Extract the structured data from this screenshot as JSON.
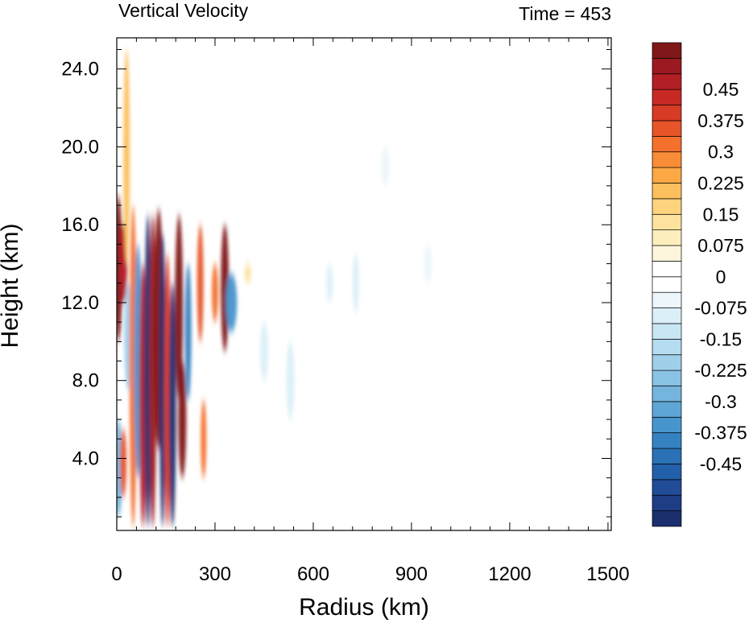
{
  "chart_data": {
    "type": "heatmap",
    "title": "Vertical Velocity",
    "time_label": "Time = 453",
    "xlabel": "Radius (km)",
    "ylabel": "Height (km)",
    "xlim": [
      0,
      1510
    ],
    "ylim": [
      0.3,
      25.6
    ],
    "x_ticks": [
      0,
      300,
      600,
      900,
      1200,
      1500
    ],
    "x_tick_labels": [
      "0",
      "300",
      "600",
      "900",
      "1200",
      "1500"
    ],
    "y_ticks": [
      4.0,
      8.0,
      12.0,
      16.0,
      20.0,
      24.0
    ],
    "y_tick_labels": [
      "4.0",
      "8.0",
      "12.0",
      "16.0",
      "20.0",
      "24.0"
    ],
    "colorbar": {
      "levels": [
        -0.5625,
        -0.525,
        -0.4875,
        -0.45,
        -0.4125,
        -0.375,
        -0.3375,
        -0.3,
        -0.2625,
        -0.225,
        -0.1875,
        -0.15,
        -0.1125,
        -0.075,
        -0.0375,
        0,
        0.0375,
        0.075,
        0.1125,
        0.15,
        0.1875,
        0.225,
        0.2625,
        0.3,
        0.3375,
        0.375,
        0.4125,
        0.45,
        0.4875,
        0.525,
        0.5625
      ],
      "colors": [
        "#1b2f6e",
        "#1f3d84",
        "#204c98",
        "#2360aa",
        "#2a71b6",
        "#3582c1",
        "#4795cd",
        "#5ea6d6",
        "#74b4dd",
        "#8ac2e4",
        "#a0cfea",
        "#b5dcf0",
        "#c9e6f4",
        "#dbeff8",
        "#ecf6fb",
        "#ffffff",
        "#ffffff",
        "#fef6dc",
        "#fdeebd",
        "#fde39d",
        "#fdd37d",
        "#fcbf5d",
        "#fba845",
        "#f98c36",
        "#f3702d",
        "#e65428",
        "#d73a25",
        "#c72a25",
        "#b31f26",
        "#9b1a22",
        "#801719"
      ],
      "tick_values": [
        -0.45,
        -0.375,
        -0.3,
        -0.225,
        -0.15,
        -0.075,
        0,
        0.075,
        0.15,
        0.225,
        0.3,
        0.375,
        0.45
      ],
      "tick_labels": [
        "-0.45",
        "-0.375",
        "-0.3",
        "-0.225",
        "-0.15",
        "-0.075",
        "0",
        "0.075",
        "0.15",
        "0.225",
        "0.3",
        "0.375",
        "0.45"
      ]
    },
    "features": [
      {
        "r": 5,
        "z0": 10.0,
        "z1": 17.5,
        "w": 0.55,
        "width": 10
      },
      {
        "r": 5,
        "z0": 1.0,
        "z1": 6.0,
        "w": -0.3,
        "width": 10
      },
      {
        "r": 20,
        "z0": 12.0,
        "z1": 16.0,
        "w": 0.45,
        "width": 10
      },
      {
        "r": 20,
        "z0": 2.0,
        "z1": 5.5,
        "w": 0.35,
        "width": 8
      },
      {
        "r": 30,
        "z0": 14.0,
        "z1": 25.0,
        "w": 0.2,
        "width": 8
      },
      {
        "r": 35,
        "z0": 7.5,
        "z1": 13.0,
        "w": -0.22,
        "width": 10
      },
      {
        "r": 50,
        "z0": 0.5,
        "z1": 17.0,
        "w": 0.3,
        "width": 9
      },
      {
        "r": 65,
        "z0": 3.0,
        "z1": 15.0,
        "w": -0.35,
        "width": 10
      },
      {
        "r": 80,
        "z0": 0.5,
        "z1": 14.0,
        "w": 0.45,
        "width": 9
      },
      {
        "r": 95,
        "z0": 0.5,
        "z1": 16.5,
        "w": -0.6,
        "width": 9
      },
      {
        "r": 110,
        "z0": 0.5,
        "z1": 16.5,
        "w": 0.5,
        "width": 9
      },
      {
        "r": 128,
        "z0": 4.5,
        "z1": 16.8,
        "w": 0.6,
        "width": 12
      },
      {
        "r": 140,
        "z0": 0.5,
        "z1": 15.5,
        "w": -0.6,
        "width": 8
      },
      {
        "r": 155,
        "z0": 0.5,
        "z1": 14.5,
        "w": 0.4,
        "width": 8
      },
      {
        "r": 170,
        "z0": 0.5,
        "z1": 13.0,
        "w": -0.6,
        "width": 9
      },
      {
        "r": 190,
        "z0": 7.0,
        "z1": 16.5,
        "w": 0.6,
        "width": 10
      },
      {
        "r": 200,
        "z0": 3.0,
        "z1": 9.0,
        "w": 0.58,
        "width": 10
      },
      {
        "r": 218,
        "z0": 7.0,
        "z1": 14.0,
        "w": -0.4,
        "width": 8
      },
      {
        "r": 255,
        "z0": 10.0,
        "z1": 16.0,
        "w": 0.35,
        "width": 8
      },
      {
        "r": 265,
        "z0": 3.0,
        "z1": 7.0,
        "w": 0.3,
        "width": 7
      },
      {
        "r": 300,
        "z0": 11.0,
        "z1": 14.0,
        "w": 0.3,
        "width": 8
      },
      {
        "r": 330,
        "z0": 9.5,
        "z1": 16.0,
        "w": 0.6,
        "width": 10
      },
      {
        "r": 350,
        "z0": 10.5,
        "z1": 13.5,
        "w": -0.35,
        "width": 14
      },
      {
        "r": 400,
        "z0": 13.0,
        "z1": 14.0,
        "w": 0.12,
        "width": 8
      },
      {
        "r": 450,
        "z0": 8.0,
        "z1": 11.0,
        "w": -0.1,
        "width": 10
      },
      {
        "r": 530,
        "z0": 6.0,
        "z1": 10.0,
        "w": -0.1,
        "width": 10
      },
      {
        "r": 650,
        "z0": 12.0,
        "z1": 14.0,
        "w": -0.09,
        "width": 8
      },
      {
        "r": 730,
        "z0": 11.5,
        "z1": 14.5,
        "w": -0.08,
        "width": 8
      },
      {
        "r": 820,
        "z0": 18.0,
        "z1": 20.0,
        "w": -0.06,
        "width": 10
      },
      {
        "r": 950,
        "z0": 13.0,
        "z1": 15.0,
        "w": -0.06,
        "width": 10
      }
    ]
  }
}
